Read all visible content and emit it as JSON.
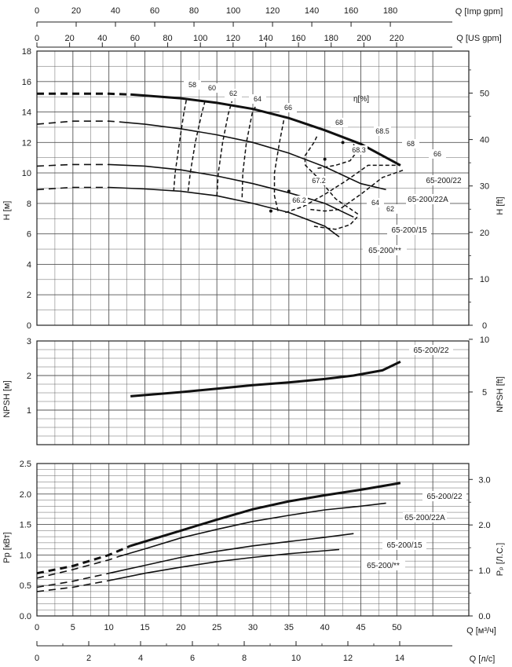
{
  "chart_data": [
    {
      "type": "line",
      "name": "head-curves",
      "x_unit_label": "Q [м³/ч]",
      "ylabel": "H [м]",
      "ylabel_right": "H [ft]",
      "xlim": [
        0,
        60
      ],
      "ylim": [
        0,
        18
      ],
      "ylim_right": [
        0,
        59.055
      ],
      "yticks": [
        0,
        2,
        4,
        6,
        8,
        10,
        12,
        14,
        16,
        18
      ],
      "yticks_right": [
        0,
        10,
        20,
        30,
        40,
        50
      ],
      "grid": true,
      "series": [
        {
          "name": "65-200/22",
          "style": "bold",
          "dashed": [
            [
              0,
              15.2
            ],
            [
              5,
              15.2
            ],
            [
              10,
              15.2
            ],
            [
              13,
              15.15
            ]
          ],
          "solid": [
            [
              13,
              15.15
            ],
            [
              20,
              14.9
            ],
            [
              25,
              14.6
            ],
            [
              30,
              14.2
            ],
            [
              35,
              13.6
            ],
            [
              40,
              12.8
            ],
            [
              45,
              11.9
            ],
            [
              50.5,
              10.5
            ]
          ]
        },
        {
          "name": "65-200/22A",
          "style": "normal",
          "dashed": [
            [
              0,
              13.2
            ],
            [
              5,
              13.4
            ],
            [
              10,
              13.4
            ],
            [
              11.5,
              13.35
            ]
          ],
          "solid": [
            [
              11.5,
              13.35
            ],
            [
              15,
              13.2
            ],
            [
              20,
              12.9
            ],
            [
              25,
              12.5
            ],
            [
              30,
              12.0
            ],
            [
              35,
              11.3
            ],
            [
              40,
              10.4
            ],
            [
              45,
              9.3
            ],
            [
              48.5,
              8.9
            ]
          ]
        },
        {
          "name": "65-200/15",
          "style": "normal",
          "dashed": [
            [
              0,
              10.45
            ],
            [
              5,
              10.55
            ],
            [
              10,
              10.55
            ]
          ],
          "solid": [
            [
              10,
              10.55
            ],
            [
              15,
              10.45
            ],
            [
              20,
              10.2
            ],
            [
              25,
              9.8
            ],
            [
              30,
              9.3
            ],
            [
              35,
              8.7
            ],
            [
              40,
              8.0
            ],
            [
              44,
              7.1
            ]
          ]
        },
        {
          "name": "65-200/**",
          "style": "normal",
          "dashed": [
            [
              0,
              8.9
            ],
            [
              5,
              9.05
            ],
            [
              10,
              9.05
            ]
          ],
          "solid": [
            [
              10,
              9.05
            ],
            [
              15,
              8.95
            ],
            [
              20,
              8.8
            ],
            [
              25,
              8.5
            ],
            [
              30,
              8.0
            ],
            [
              35,
              7.4
            ],
            [
              40,
              6.5
            ],
            [
              42,
              5.8
            ]
          ]
        }
      ],
      "efficiency_title": "η[%]",
      "efficiency_lines": [
        {
          "label": "58",
          "points": [
            [
              19,
              8.8
            ],
            [
              19.2,
              10
            ],
            [
              19.8,
              12
            ],
            [
              20.4,
              13.9
            ],
            [
              20.8,
              14.9
            ]
          ]
        },
        {
          "label": "60",
          "points": [
            [
              21,
              8.8
            ],
            [
              21.3,
              10
            ],
            [
              22,
              12
            ],
            [
              22.9,
              13.9
            ],
            [
              23.4,
              14.8
            ]
          ]
        },
        {
          "label": "62",
          "points": [
            [
              25,
              8.5
            ],
            [
              25.2,
              10
            ],
            [
              25.8,
              12
            ],
            [
              26.6,
              13.9
            ],
            [
              27.1,
              14.7
            ]
          ]
        },
        {
          "label": "64",
          "points": [
            [
              28.5,
              8.4
            ],
            [
              28.6,
              10
            ],
            [
              29.1,
              12
            ],
            [
              29.9,
              13.9
            ],
            [
              30.4,
              14.4
            ]
          ]
        },
        {
          "label": "66",
          "points": [
            [
              33.5,
              7.5
            ],
            [
              33,
              8.5
            ],
            [
              33,
              10
            ],
            [
              33.7,
              12
            ],
            [
              34.4,
              13.7
            ]
          ]
        },
        {
          "label": "68",
          "points": [
            [
              44.6,
              7.3
            ],
            [
              41.5,
              8.3
            ],
            [
              39,
              9.7
            ],
            [
              37.3,
              10.5
            ],
            [
              37.2,
              11.1
            ],
            [
              38.5,
              12.0
            ],
            [
              39,
              12.5
            ]
          ]
        },
        {
          "label": "68.5",
          "points": [
            [
              39,
              10.3
            ],
            [
              41.5,
              10.5
            ],
            [
              43.5,
              10.8
            ],
            [
              44.3,
              11.3
            ],
            [
              44,
              11.9
            ]
          ]
        },
        {
          "label": "64",
          "points": [
            [
              38,
              7.6
            ],
            [
              40,
              7.5
            ],
            [
              42,
              7.6
            ],
            [
              45,
              8.6
            ],
            [
              48,
              9.7
            ],
            [
              51,
              10.2
            ]
          ]
        },
        {
          "label": "62",
          "points": [
            [
              38.5,
              6.5
            ],
            [
              41.5,
              6.3
            ],
            [
              43.5,
              6.6
            ],
            [
              44.5,
              7.1
            ]
          ]
        },
        {
          "label": "66",
          "points": [
            [
              34.5,
              7.4
            ],
            [
              37,
              7.8
            ],
            [
              40,
              8.6
            ],
            [
              43,
              9.5
            ],
            [
              46,
              10.5
            ],
            [
              50.5,
              10.5
            ]
          ]
        }
      ],
      "efficiency_labels": [
        "58",
        "60",
        "62",
        "64",
        "66",
        "68",
        "68.5",
        "68.3",
        "68",
        "66",
        "67.2",
        "66.2",
        "64",
        "62"
      ],
      "efficiency_points": [
        {
          "label": "68.3",
          "x": 40,
          "y": 10.9
        },
        {
          "label": "68.5",
          "x": 42.5,
          "y": 12.0
        },
        {
          "label": "67.2",
          "x": 35,
          "y": 8.8
        },
        {
          "label": "66.2",
          "x": 32.5,
          "y": 7.5
        }
      ],
      "curve_labels": [
        "65-200/22",
        "65-200/22A",
        "65-200/15",
        "65-200/**"
      ]
    },
    {
      "type": "line",
      "name": "npsh-curve",
      "ylabel": "NPSH [м]",
      "ylabel_right": "NPSH [ft]",
      "xlim": [
        0,
        60
      ],
      "ylim": [
        0,
        3
      ],
      "ylim_right": [
        0,
        9.843
      ],
      "yticks": [
        1,
        2,
        3
      ],
      "yticks_right": [
        5,
        10
      ],
      "grid": true,
      "series": [
        {
          "name": "65-200/22",
          "solid": [
            [
              13,
              1.4
            ],
            [
              20,
              1.52
            ],
            [
              25,
              1.62
            ],
            [
              30,
              1.72
            ],
            [
              35,
              1.8
            ],
            [
              40,
              1.9
            ],
            [
              44,
              2.0
            ],
            [
              48,
              2.15
            ],
            [
              50.5,
              2.4
            ]
          ]
        }
      ]
    },
    {
      "type": "line",
      "name": "power-curves",
      "xlabel": "Q [м³/ч]",
      "xlabel_ls": "Q [л/с]",
      "ylabel": "Pp [кВт]",
      "ylabel_right": "Pₚ [Л.С.]",
      "xlim": [
        0,
        60
      ],
      "xticks": [
        0,
        5,
        10,
        15,
        20,
        25,
        30,
        35,
        40,
        45,
        50
      ],
      "xticks_ls": [
        0,
        2,
        4,
        6,
        8,
        10,
        12,
        14
      ],
      "ylim": [
        0,
        2.5
      ],
      "ylim_right": [
        0,
        3.35
      ],
      "yticks": [
        0.0,
        0.5,
        1.0,
        1.5,
        2.0,
        2.5
      ],
      "yticks_right": [
        "0.0",
        "1.0",
        "2.0",
        "3.0"
      ],
      "grid": true,
      "series": [
        {
          "name": "65-200/22",
          "style": "bold",
          "dashed": [
            [
              0,
              0.7
            ],
            [
              5,
              0.82
            ],
            [
              10,
              1.0
            ],
            [
              13,
              1.15
            ]
          ],
          "solid": [
            [
              13,
              1.15
            ],
            [
              20,
              1.4
            ],
            [
              25,
              1.58
            ],
            [
              30,
              1.75
            ],
            [
              35,
              1.88
            ],
            [
              40,
              1.98
            ],
            [
              45,
              2.07
            ],
            [
              50.5,
              2.18
            ]
          ]
        },
        {
          "name": "65-200/22A",
          "style": "normal",
          "dashed": [
            [
              0,
              0.62
            ],
            [
              5,
              0.76
            ],
            [
              10,
              0.92
            ],
            [
              11.5,
              0.98
            ]
          ],
          "solid": [
            [
              11.5,
              0.98
            ],
            [
              15,
              1.1
            ],
            [
              20,
              1.28
            ],
            [
              25,
              1.42
            ],
            [
              30,
              1.55
            ],
            [
              35,
              1.65
            ],
            [
              40,
              1.74
            ],
            [
              45,
              1.8
            ],
            [
              48.5,
              1.85
            ]
          ]
        },
        {
          "name": "65-200/15",
          "style": "normal",
          "dashed": [
            [
              0,
              0.47
            ],
            [
              5,
              0.57
            ],
            [
              10,
              0.7
            ]
          ],
          "solid": [
            [
              10,
              0.7
            ],
            [
              15,
              0.83
            ],
            [
              20,
              0.96
            ],
            [
              25,
              1.06
            ],
            [
              30,
              1.15
            ],
            [
              35,
              1.22
            ],
            [
              40,
              1.29
            ],
            [
              44,
              1.35
            ]
          ]
        },
        {
          "name": "65-200/**",
          "style": "normal",
          "dashed": [
            [
              0,
              0.4
            ],
            [
              5,
              0.47
            ],
            [
              10,
              0.58
            ]
          ],
          "solid": [
            [
              10,
              0.58
            ],
            [
              15,
              0.7
            ],
            [
              20,
              0.8
            ],
            [
              25,
              0.89
            ],
            [
              30,
              0.96
            ],
            [
              35,
              1.02
            ],
            [
              40,
              1.07
            ],
            [
              42,
              1.09
            ]
          ]
        }
      ],
      "curve_labels": [
        "65-200/22",
        "65-200/22A",
        "65-200/15",
        "65-200/**"
      ]
    }
  ],
  "top_axes": {
    "imp_label": "Q [Imp gpm]",
    "imp_ticks": [
      "0",
      "20",
      "40",
      "60",
      "80",
      "100",
      "120",
      "140",
      "160",
      "180"
    ],
    "us_label": "Q [US gpm]",
    "us_ticks": [
      "0",
      "20",
      "40",
      "60",
      "80",
      "100",
      "120",
      "140",
      "160",
      "180",
      "200",
      "220"
    ]
  },
  "colors": {
    "grid": "#555555",
    "curve": "#111111",
    "background": "#ffffff"
  }
}
